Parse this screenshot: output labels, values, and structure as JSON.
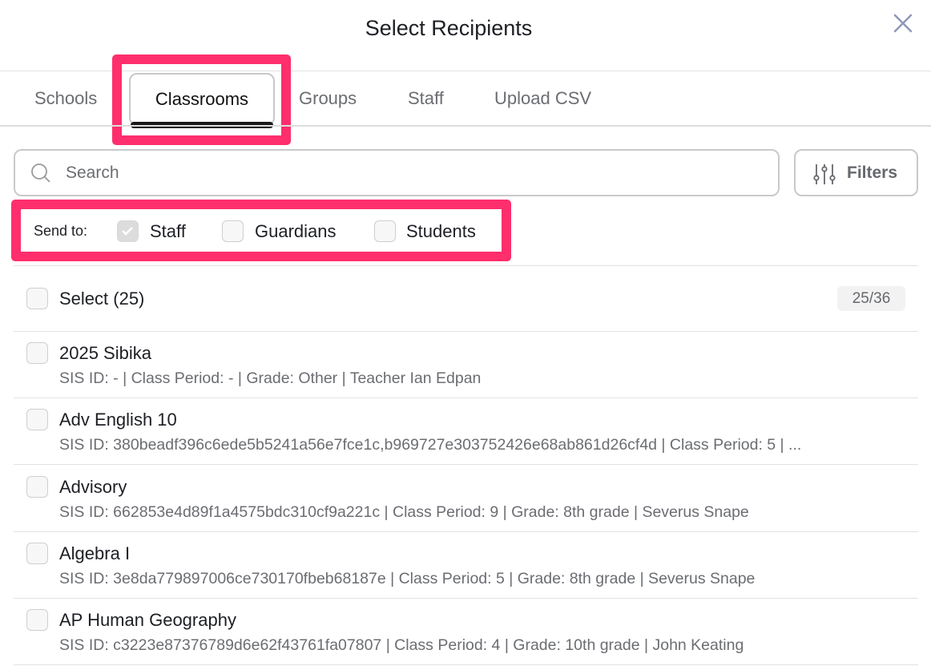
{
  "header": {
    "title": "Select Recipients",
    "close_icon": "close-icon"
  },
  "tabs": [
    {
      "label": "Schools"
    },
    {
      "label": "Classrooms",
      "active": true
    },
    {
      "label": "Groups"
    },
    {
      "label": "Staff"
    },
    {
      "label": "Upload CSV"
    }
  ],
  "search": {
    "placeholder": "Search",
    "value": ""
  },
  "filters": {
    "label": "Filters",
    "icon": "sliders-icon"
  },
  "send_to": {
    "label": "Send to:",
    "options": [
      {
        "label": "Staff",
        "checked": true,
        "disabled": true
      },
      {
        "label": "Guardians",
        "checked": false
      },
      {
        "label": "Students",
        "checked": false
      }
    ]
  },
  "select_all": {
    "label": "Select (25)",
    "count": "25/36"
  },
  "classrooms": [
    {
      "name": "2025 Sibika",
      "details": "SIS ID: - | Class Period: - | Grade: Other | Teacher Ian Edpan"
    },
    {
      "name": "Adv English 10",
      "details": "SIS ID: 380beadf396c6ede5b5241a56e7fce1c,b969727e303752426e68ab861d26cf4d | Class Period: 5 | ..."
    },
    {
      "name": "Advisory",
      "details": "SIS ID: 662853e4d89f1a4575bdc310cf9a221c | Class Period: 9 | Grade: 8th grade | Severus Snape"
    },
    {
      "name": "Algebra I",
      "details": "SIS ID: 3e8da779897006ce730170fbeb68187e | Class Period: 5 | Grade: 8th grade | Severus Snape"
    },
    {
      "name": "AP Human Geography",
      "details": "SIS ID: c3223e87376789d6e62f43761fa07807 | Class Period: 4 | Grade: 10th grade | John Keating"
    }
  ],
  "colors": {
    "highlight": "#ff2e6c",
    "close": "#8e98b8"
  }
}
